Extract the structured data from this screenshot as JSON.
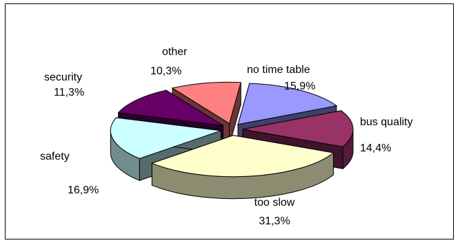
{
  "chart_data": {
    "type": "pie",
    "style": "3d-exploded",
    "categories": [
      "no time table",
      "bus quality",
      "too slow",
      "safety",
      "security",
      "other"
    ],
    "values": [
      15.9,
      14.4,
      31.3,
      16.9,
      11.3,
      10.3
    ],
    "value_labels": [
      "15,9%",
      "14,4%",
      "31,3%",
      "16,9%",
      "11,3%",
      "10,3%"
    ],
    "colors": [
      "#9999ff",
      "#993366",
      "#ffffcc",
      "#ccffff",
      "#660066",
      "#ff8080"
    ],
    "legend": "none"
  }
}
